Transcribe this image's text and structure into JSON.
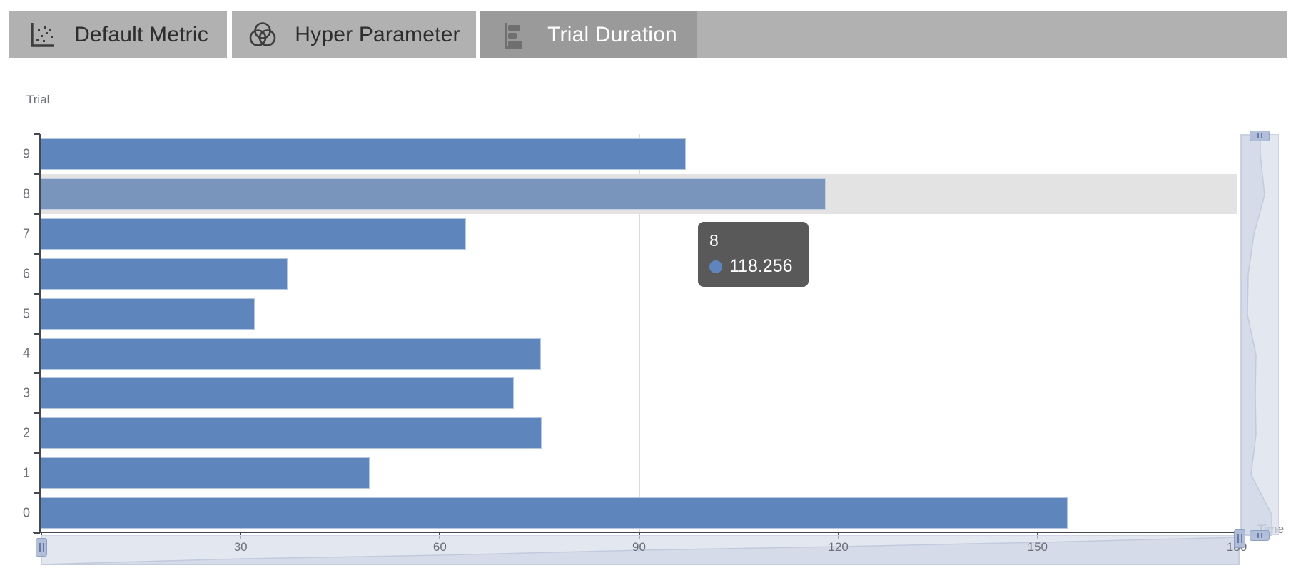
{
  "tabs": [
    {
      "label": "Default Metric",
      "icon": "scatter-plot-icon",
      "selected": false
    },
    {
      "label": "Hyper Parameter",
      "icon": "venn-diagram-icon",
      "selected": false
    },
    {
      "label": "Trial Duration",
      "icon": "horizontal-bar-chart-icon",
      "selected": true
    }
  ],
  "chart_data": {
    "type": "bar",
    "orientation": "horizontal",
    "ylabel": "Trial",
    "xlabel": "Time",
    "categories": [
      "9",
      "8",
      "7",
      "6",
      "5",
      "4",
      "3",
      "2",
      "1",
      "0"
    ],
    "values": [
      97.1,
      118.256,
      64.1,
      37.2,
      32.2,
      75.3,
      71.3,
      75.4,
      49.5,
      154.6
    ],
    "xlim": [
      0,
      180
    ],
    "x_ticks": [
      0,
      30,
      60,
      90,
      120,
      150,
      180
    ],
    "grid": true,
    "legend": "none",
    "highlighted_category": "8",
    "bar_color": "#5e85bc",
    "highlight_bar_color": "#7a95bb"
  },
  "tooltip": {
    "title": "8",
    "value": "118.256",
    "dot_color": "#5e85bc"
  },
  "data_zoom": {
    "x_range": [
      "0",
      "180"
    ],
    "y_range": [
      "0",
      "9"
    ]
  },
  "colors": {
    "tabbar_bg": "#b1b1b1",
    "tab_selected_bg": "#9a9a9a",
    "axis": "#45494f",
    "grid": "#d9dbe0",
    "hover_band": "#e3e3e3"
  }
}
